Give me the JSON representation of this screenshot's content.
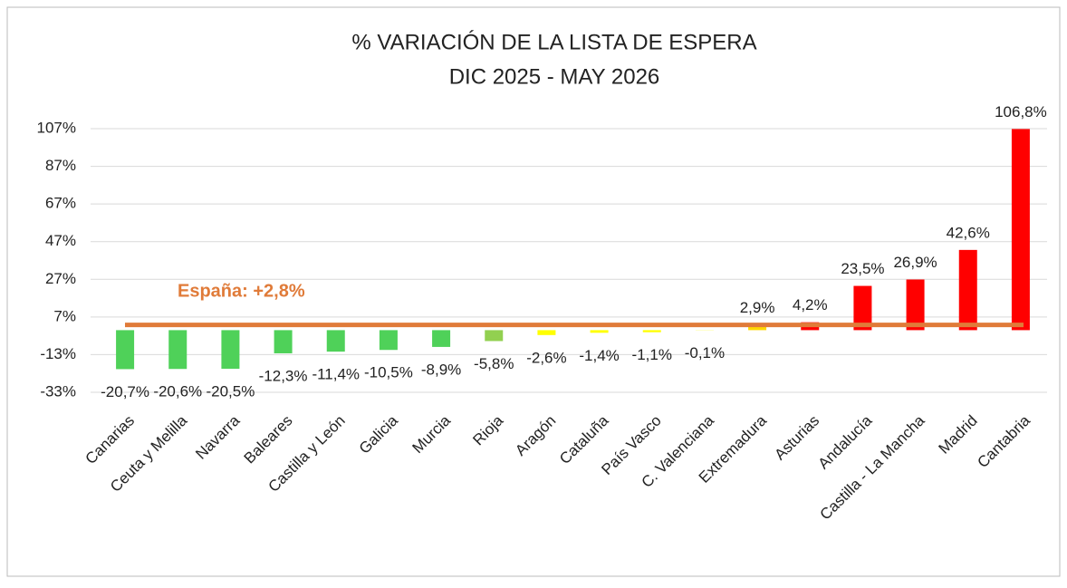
{
  "chart_data": {
    "type": "bar",
    "title": "% VARIACIÓN DE LA LISTA DE ESPERA",
    "subtitle": "DIC 2025 - MAY 2026",
    "categories": [
      "Canarias",
      "Ceuta y Melilla",
      "Navarra",
      "Baleares",
      "Castilla y León",
      "Galicia",
      "Murcia",
      "Rioja",
      "Aragón",
      "Cataluña",
      "País Vasco",
      "C. Valenciana",
      "Extremadura",
      "Asturias",
      "Andalucía",
      "Castilla - La Mancha",
      "Madrid",
      "Cantabria"
    ],
    "values": [
      -20.7,
      -20.6,
      -20.5,
      -12.3,
      -11.4,
      -10.5,
      -8.9,
      -5.8,
      -2.6,
      -1.4,
      -1.1,
      -0.1,
      2.9,
      4.2,
      23.5,
      26.9,
      42.6,
      106.8
    ],
    "value_labels": [
      "-20,7%",
      "-20,6%",
      "-20,5%",
      "-12,3%",
      "-11,4%",
      "-10,5%",
      "-8,9%",
      "-5,8%",
      "-2,6%",
      "-1,4%",
      "-1,1%",
      "-0,1%",
      "2,9%",
      "4,2%",
      "23,5%",
      "26,9%",
      "42,6%",
      "106,8%"
    ],
    "colors": [
      "#4fd159",
      "#4fd159",
      "#4fd159",
      "#4fd159",
      "#4fd159",
      "#4fd159",
      "#4fd159",
      "#92d050",
      "#ffff00",
      "#ffff00",
      "#ffff00",
      "#ffff00",
      "#ffd700",
      "#ff0000",
      "#ff0000",
      "#ff0000",
      "#ff0000",
      "#ff0000"
    ],
    "ylim": [
      -33,
      107
    ],
    "yticks": [
      {
        "value": -33,
        "label": "-33%"
      },
      {
        "value": -13,
        "label": "-13%"
      },
      {
        "value": 7,
        "label": "7%"
      },
      {
        "value": 27,
        "label": "27%"
      },
      {
        "value": 47,
        "label": "47%"
      },
      {
        "value": 67,
        "label": "67%"
      },
      {
        "value": 87,
        "label": "87%"
      },
      {
        "value": 107,
        "label": "107%"
      }
    ],
    "grid": true,
    "reference": {
      "label": "España: +2,8%",
      "value": 2.8,
      "color": "#e07b39"
    }
  }
}
